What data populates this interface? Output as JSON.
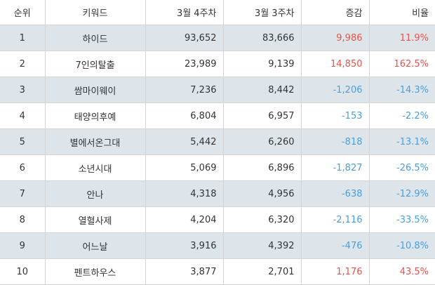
{
  "headers": {
    "rank": "순위",
    "keyword": "키워드",
    "week4": "3월 4주차",
    "week3": "3월 3주차",
    "change": "증감",
    "ratio": "비율"
  },
  "colors": {
    "positive": "#e8534c",
    "negative": "#4a9ee0",
    "stripe": "#dde5ea"
  },
  "rows": [
    {
      "rank": "1",
      "keyword": "하이드",
      "week4": "93,652",
      "week3": "83,666",
      "change": "9,986",
      "ratio": "11.9%",
      "trend": "pos"
    },
    {
      "rank": "2",
      "keyword": "7인의탈출",
      "week4": "23,989",
      "week3": "9,139",
      "change": "14,850",
      "ratio": "162.5%",
      "trend": "pos"
    },
    {
      "rank": "3",
      "keyword": "쌈마이웨이",
      "week4": "7,236",
      "week3": "8,442",
      "change": "-1,206",
      "ratio": "-14.3%",
      "trend": "neg"
    },
    {
      "rank": "4",
      "keyword": "태양의후예",
      "week4": "6,804",
      "week3": "6,957",
      "change": "-153",
      "ratio": "-2.2%",
      "trend": "neg"
    },
    {
      "rank": "5",
      "keyword": "별에서온그대",
      "week4": "5,442",
      "week3": "6,260",
      "change": "-818",
      "ratio": "-13.1%",
      "trend": "neg"
    },
    {
      "rank": "6",
      "keyword": "소년시대",
      "week4": "5,069",
      "week3": "6,896",
      "change": "-1,827",
      "ratio": "-26.5%",
      "trend": "neg"
    },
    {
      "rank": "7",
      "keyword": "안나",
      "week4": "4,318",
      "week3": "4,956",
      "change": "-638",
      "ratio": "-12.9%",
      "trend": "neg"
    },
    {
      "rank": "8",
      "keyword": "열혈사제",
      "week4": "4,204",
      "week3": "6,320",
      "change": "-2,116",
      "ratio": "-33.5%",
      "trend": "neg"
    },
    {
      "rank": "9",
      "keyword": "어느날",
      "week4": "3,916",
      "week3": "4,392",
      "change": "-476",
      "ratio": "-10.8%",
      "trend": "neg"
    },
    {
      "rank": "10",
      "keyword": "펜트하우스",
      "week4": "3,877",
      "week3": "2,701",
      "change": "1,176",
      "ratio": "43.5%",
      "trend": "pos"
    }
  ]
}
